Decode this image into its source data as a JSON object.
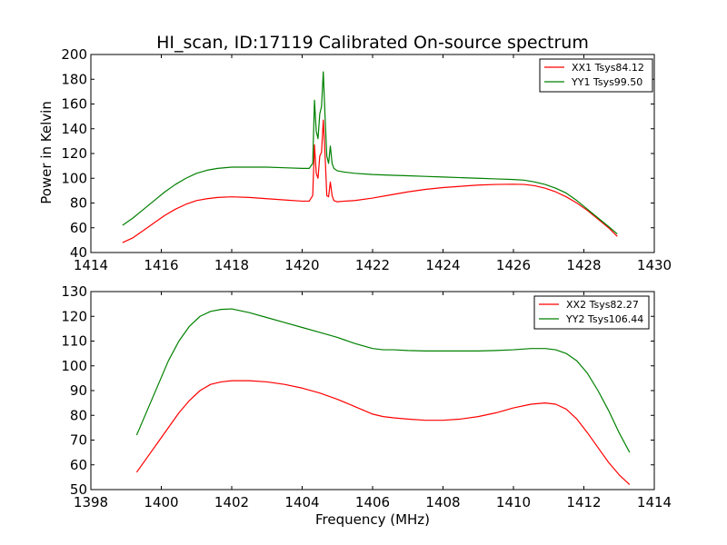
{
  "chart_data": [
    {
      "type": "line",
      "title": "HI_scan, ID:17119 Calibrated On-source spectrum",
      "xlabel": "",
      "ylabel": "Power in Kelvin",
      "xlim": [
        1414,
        1430
      ],
      "ylim": [
        40,
        200
      ],
      "xticks": [
        1414,
        1416,
        1418,
        1420,
        1422,
        1424,
        1426,
        1428,
        1430
      ],
      "yticks": [
        40,
        60,
        80,
        100,
        120,
        140,
        160,
        180,
        200
      ],
      "grid": false,
      "legend": "top-right",
      "series": [
        {
          "name": "XX1 Tsys84.12",
          "color": "#ff0000",
          "x": [
            1414.9,
            1415.2,
            1415.5,
            1415.8,
            1416.1,
            1416.4,
            1416.7,
            1417.0,
            1417.3,
            1417.6,
            1418.0,
            1418.5,
            1419.0,
            1419.5,
            1420.0,
            1420.2,
            1420.3,
            1420.35,
            1420.4,
            1420.45,
            1420.5,
            1420.55,
            1420.6,
            1420.65,
            1420.7,
            1420.75,
            1420.8,
            1420.85,
            1420.9,
            1421.0,
            1421.2,
            1421.5,
            1422.0,
            1422.5,
            1423.0,
            1423.5,
            1424.0,
            1424.5,
            1425.0,
            1425.5,
            1426.0,
            1426.3,
            1426.6,
            1426.9,
            1427.2,
            1427.5,
            1427.8,
            1428.1,
            1428.4,
            1428.7,
            1428.95
          ],
          "y": [
            48,
            52,
            58,
            64,
            70,
            75,
            79,
            82,
            83.5,
            84.5,
            85,
            84.5,
            83.5,
            82.5,
            81.5,
            81.5,
            86,
            127,
            104,
            100,
            118,
            121,
            147,
            119,
            86,
            85,
            97,
            86,
            82,
            81,
            81.5,
            82,
            84,
            86.5,
            89,
            91,
            92.5,
            93.5,
            94.5,
            95,
            95.2,
            95,
            94,
            92,
            89,
            85,
            80,
            74,
            67,
            60,
            53
          ]
        },
        {
          "name": "YY1 Tsys99.50",
          "color": "#008000",
          "x": [
            1414.9,
            1415.2,
            1415.5,
            1415.8,
            1416.1,
            1416.4,
            1416.7,
            1417.0,
            1417.3,
            1417.6,
            1418.0,
            1418.5,
            1419.0,
            1419.5,
            1420.0,
            1420.2,
            1420.3,
            1420.35,
            1420.4,
            1420.45,
            1420.5,
            1420.55,
            1420.6,
            1420.65,
            1420.7,
            1420.75,
            1420.8,
            1420.85,
            1420.9,
            1421.0,
            1421.2,
            1421.5,
            1422.0,
            1422.5,
            1423.0,
            1423.5,
            1424.0,
            1424.5,
            1425.0,
            1425.5,
            1426.0,
            1426.3,
            1426.6,
            1426.9,
            1427.2,
            1427.5,
            1427.8,
            1428.1,
            1428.4,
            1428.7,
            1428.95
          ],
          "y": [
            62,
            68,
            75,
            82,
            89,
            95,
            100,
            104,
            106.5,
            108,
            109,
            109,
            109,
            108.5,
            108,
            108,
            112,
            163,
            138,
            132,
            152,
            158,
            186,
            150,
            118,
            112,
            126,
            112,
            108,
            106,
            105,
            104,
            103,
            102.5,
            102,
            101.5,
            101,
            100.5,
            100,
            99.5,
            99,
            98.5,
            97,
            95,
            92,
            88,
            82,
            75,
            68,
            61,
            55
          ]
        }
      ]
    },
    {
      "type": "line",
      "title": "",
      "xlabel": "Frequency (MHz)",
      "ylabel": "",
      "xlim": [
        1398,
        1414
      ],
      "ylim": [
        50,
        130
      ],
      "xticks": [
        1398,
        1400,
        1402,
        1404,
        1406,
        1408,
        1410,
        1412,
        1414
      ],
      "yticks": [
        50,
        60,
        70,
        80,
        90,
        100,
        110,
        120,
        130
      ],
      "grid": false,
      "legend": "top-right",
      "series": [
        {
          "name": "XX2 Tsys82.27",
          "color": "#ff0000",
          "x": [
            1399.3,
            1399.6,
            1399.9,
            1400.2,
            1400.5,
            1400.8,
            1401.1,
            1401.4,
            1401.7,
            1402.0,
            1402.5,
            1403.0,
            1403.5,
            1404.0,
            1404.5,
            1405.0,
            1405.5,
            1406.0,
            1406.3,
            1406.6,
            1407.0,
            1407.5,
            1408.0,
            1408.5,
            1409.0,
            1409.5,
            1410.0,
            1410.5,
            1410.9,
            1411.2,
            1411.5,
            1411.8,
            1412.1,
            1412.4,
            1412.7,
            1413.0,
            1413.3
          ],
          "y": [
            57,
            63,
            69,
            75,
            81,
            86,
            90,
            92.5,
            93.5,
            94,
            94,
            93.5,
            92.5,
            91,
            89,
            86.5,
            83.5,
            80.5,
            79.5,
            79,
            78.5,
            78,
            78,
            78.5,
            79.5,
            81,
            83,
            84.5,
            85,
            84.5,
            82.5,
            78.5,
            73,
            67,
            61,
            56,
            52
          ]
        },
        {
          "name": "YY2 Tsys106.44",
          "color": "#008000",
          "x": [
            1399.3,
            1399.6,
            1399.9,
            1400.2,
            1400.5,
            1400.8,
            1401.1,
            1401.4,
            1401.7,
            1402.0,
            1402.5,
            1403.0,
            1403.5,
            1404.0,
            1404.5,
            1405.0,
            1405.5,
            1406.0,
            1406.3,
            1406.6,
            1407.0,
            1407.5,
            1408.0,
            1408.5,
            1409.0,
            1409.5,
            1410.0,
            1410.5,
            1410.9,
            1411.2,
            1411.5,
            1411.8,
            1412.1,
            1412.4,
            1412.7,
            1413.0,
            1413.3
          ],
          "y": [
            72,
            82,
            92,
            102,
            110,
            116,
            120,
            122,
            122.8,
            123,
            121.5,
            119.5,
            117.5,
            115.5,
            113.5,
            111.5,
            109,
            107,
            106.5,
            106.5,
            106.2,
            106,
            106,
            106,
            106,
            106.2,
            106.5,
            107,
            107,
            106.5,
            105,
            102,
            97,
            90,
            82,
            73,
            65
          ]
        }
      ]
    }
  ]
}
